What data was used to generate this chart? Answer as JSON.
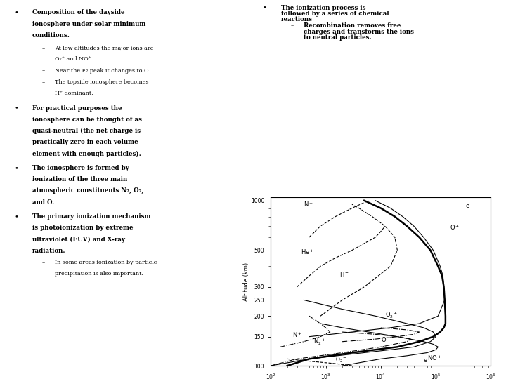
{
  "bg_color": "#ffffff",
  "left_bullets": [
    {
      "bold": true,
      "text": "Composition of the dayside ionosphere under solar minimum conditions.",
      "lines": [
        "Composition of the dayside",
        "ionosphere under solar minimum",
        "conditions."
      ],
      "subs": [
        {
          "lines": [
            "At low altitudes the major ions are",
            "O₂⁺ and NO⁺"
          ]
        },
        {
          "lines": [
            "Near the F₂ peak it changes to O⁺"
          ]
        },
        {
          "lines": [
            "The topside ionosphere becomes",
            "H⁺ dominant."
          ]
        }
      ]
    },
    {
      "bold": true,
      "lines": [
        "For practical purposes the",
        "ionosphere can be thought of as",
        "quasi-neutral (the net charge is",
        "practically zero in each volume",
        "element with enough particles)."
      ],
      "subs": []
    },
    {
      "bold": true,
      "lines": [
        "The ionosphere is formed by",
        "ionization of the three main",
        "atmospheric constituents N₂, O₂,",
        "and O."
      ],
      "subs": []
    },
    {
      "bold": true,
      "lines": [
        "The primary ionization mechanism",
        "is photoionization by extreme",
        "ultraviolet (EUV) and X-ray",
        "radiation."
      ],
      "subs": [
        {
          "lines": [
            "In some areas ionization by particle",
            "precipitation is also important."
          ]
        }
      ]
    }
  ],
  "right_bullets": [
    {
      "bold": true,
      "lines": [
        "The ionization process is",
        "followed by a series of chemical",
        "reactions"
      ],
      "subs": [
        {
          "lines": [
            "Recombination removes free",
            "charges and transforms the ions",
            "to neutral particles."
          ]
        }
      ]
    }
  ]
}
